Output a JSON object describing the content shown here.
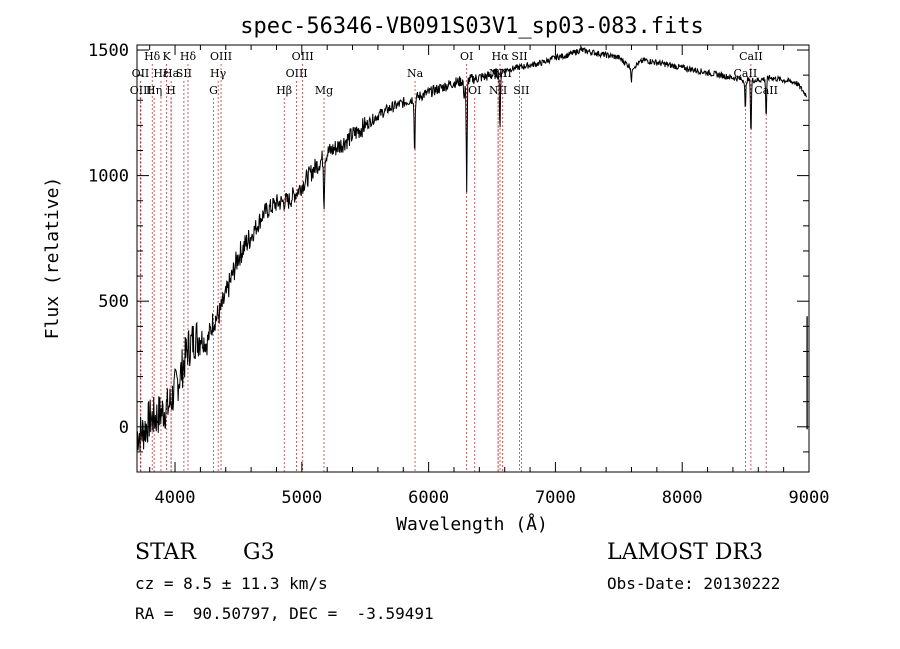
{
  "chart_data": {
    "type": "line",
    "title": "spec-56346-VB091S03V1_sp03-083.fits",
    "xlabel": "Wavelength (Å)",
    "ylabel": "Flux (relative)",
    "xlim": [
      3700,
      9000
    ],
    "ylim": [
      -180,
      1520
    ],
    "xticks": [
      4000,
      5000,
      6000,
      7000,
      8000,
      9000
    ],
    "yticks": [
      0,
      500,
      1000,
      1500
    ],
    "grid": false,
    "series": [
      {
        "name": "flux",
        "x": [
          3700,
          3750,
          3800,
          3850,
          3900,
          3950,
          4000,
          4050,
          4100,
          4150,
          4200,
          4250,
          4300,
          4350,
          4400,
          4450,
          4500,
          4600,
          4700,
          4800,
          4900,
          5000,
          5100,
          5200,
          5300,
          5400,
          5500,
          5600,
          5700,
          5800,
          5900,
          6000,
          6100,
          6200,
          6300,
          6400,
          6500,
          6600,
          6700,
          6800,
          6900,
          7000,
          7100,
          7200,
          7300,
          7400,
          7500,
          7600,
          7700,
          7800,
          7900,
          8000,
          8100,
          8200,
          8300,
          8400,
          8500,
          8600,
          8700,
          8800,
          8900,
          8980
        ],
        "y": [
          -30,
          -20,
          30,
          40,
          60,
          80,
          150,
          220,
          310,
          350,
          360,
          330,
          420,
          450,
          520,
          600,
          680,
          760,
          850,
          890,
          900,
          960,
          1030,
          1090,
          1120,
          1160,
          1200,
          1240,
          1270,
          1290,
          1310,
          1330,
          1350,
          1370,
          1380,
          1390,
          1400,
          1420,
          1430,
          1440,
          1450,
          1470,
          1480,
          1500,
          1490,
          1480,
          1470,
          1430,
          1460,
          1450,
          1440,
          1430,
          1420,
          1410,
          1400,
          1390,
          1380,
          1380,
          1390,
          1380,
          1370,
          1320
        ]
      }
    ],
    "absorption_dips": [
      {
        "x": 5175,
        "depth": 190
      },
      {
        "x": 5890,
        "depth": 230
      },
      {
        "x": 6280,
        "depth": 90
      },
      {
        "x": 6300,
        "depth": 460
      },
      {
        "x": 6563,
        "depth": 250
      },
      {
        "x": 7600,
        "depth": 60
      },
      {
        "x": 8498,
        "depth": 130
      },
      {
        "x": 8542,
        "depth": 220
      },
      {
        "x": 8662,
        "depth": 160
      }
    ],
    "line_markers": [
      {
        "label": "Hδ",
        "x": 3820,
        "row": 1
      },
      {
        "label": "OII",
        "x": 3727,
        "row": 2
      },
      {
        "label": "OIII",
        "x": 3730,
        "row": 3
      },
      {
        "label": "Hε",
        "x": 3889,
        "row": 2
      },
      {
        "label": "Hη",
        "x": 3835,
        "row": 3
      },
      {
        "label": "K",
        "x": 3934,
        "row": 1
      },
      {
        "label": "Ha",
        "x": 3969,
        "row": 2
      },
      {
        "label": "H",
        "x": 3969,
        "row": 3
      },
      {
        "label": "Hδ",
        "x": 4102,
        "row": 1
      },
      {
        "label": "SII",
        "x": 4070,
        "row": 2
      },
      {
        "label": "OIII",
        "x": 4363,
        "row": 1
      },
      {
        "label": "Hγ",
        "x": 4340,
        "row": 2
      },
      {
        "label": "G",
        "x": 4304,
        "row": 3
      },
      {
        "label": "OIII",
        "x": 5007,
        "row": 1
      },
      {
        "label": "OIII",
        "x": 4959,
        "row": 2
      },
      {
        "label": "Hβ",
        "x": 4861,
        "row": 3
      },
      {
        "label": "Mg",
        "x": 5175,
        "row": 3
      },
      {
        "label": "Na",
        "x": 5893,
        "row": 2
      },
      {
        "label": "OI",
        "x": 6300,
        "row": 1
      },
      {
        "label": "OI",
        "x": 6364,
        "row": 3
      },
      {
        "label": "Hα",
        "x": 6563,
        "row": 1
      },
      {
        "label": "SII",
        "x": 6717,
        "row": 1
      },
      {
        "label": "NII",
        "x": 6548,
        "row": 2
      },
      {
        "label": "NII",
        "x": 6584,
        "row": 2
      },
      {
        "label": "NII",
        "x": 6548,
        "row": 3
      },
      {
        "label": "SII",
        "x": 6731,
        "row": 3
      },
      {
        "label": "CaII",
        "x": 8542,
        "row": 1
      },
      {
        "label": "CaII",
        "x": 8498,
        "row": 2
      },
      {
        "label": "CaII",
        "x": 8662,
        "row": 3
      }
    ]
  },
  "info": {
    "object_class": "STAR",
    "subclass": "G3",
    "survey": "LAMOST DR3",
    "redshift": "cz = 8.5 ± 11.3 km/s",
    "obs_date": "Obs-Date: 20130222",
    "coords": "RA =  90.50797, DEC =  -3.59491"
  }
}
